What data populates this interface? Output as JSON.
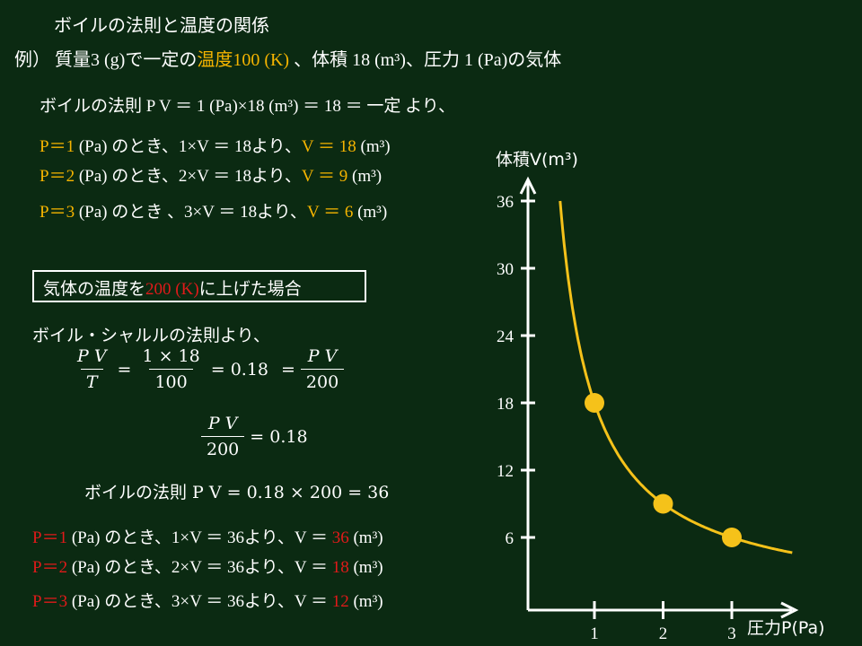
{
  "title": "ボイルの法則と温度の関係",
  "example": {
    "prefix": "例）",
    "mid": " 質量3 (g)で一定の",
    "temp_label": "温度",
    "temp_value": "100 (K)",
    "rest": " 、体積 18 (m³)、圧力 1 (Pa)の気体"
  },
  "boyle_line": "ボイルの法則 P V ＝ 1 (Pa)×18 (m³) ＝ 18 ＝ 一定 より、",
  "section1": [
    {
      "p": "P＝1",
      "mid": " (Pa) のとき、1×V ＝ 18より、",
      "v": "V ＝ 18",
      "unit": " (m³)"
    },
    {
      "p": "P＝2",
      "mid": " (Pa) のとき、2×V ＝ 18より、",
      "v": "V ＝ 9",
      "unit": " (m³)"
    },
    {
      "p": "P＝3",
      "mid": " (Pa) のとき 、3×V ＝ 18より、",
      "v": "V ＝ 6",
      "unit": " (m³)"
    }
  ],
  "box": {
    "pre": "気体の温度を",
    "value": "200 (K)",
    "post": "に上げた場合"
  },
  "charles_line": "ボイル・シャルルの法則より、",
  "eq1": {
    "n1": "P V",
    "d1": "T",
    "n2": "1 × 18",
    "d2": "100",
    "eq_a": "=",
    "mid": "= 0.18",
    "eq_b": "=",
    "n3": "P V",
    "d3": "200"
  },
  "eq2": {
    "n": "P V",
    "d": "200",
    "rhs": "= 0.18"
  },
  "boyle2": "ボイルの法則 P V = 0.18 × 200 = 36",
  "section2": [
    {
      "p": "P＝1",
      "mid": " (Pa) のとき、1×V ＝ 36より、V ＝ ",
      "v": "36",
      "unit": " (m³)"
    },
    {
      "p": "P＝2",
      "mid": " (Pa) のとき、2×V ＝ 36より、V ＝ ",
      "v": "18",
      "unit": " (m³)"
    },
    {
      "p": "P＝3",
      "mid": " (Pa) のとき、3×V ＝ 36より、V ＝ ",
      "v": "12",
      "unit": " (m³)"
    }
  ],
  "chart_data": {
    "type": "line",
    "ylabel": "体積V(m³)",
    "xlabel": "圧力P(Pa)",
    "yticks": [
      "36",
      "30",
      "24",
      "18",
      "12",
      "6"
    ],
    "xticks": [
      "1",
      "2",
      "3"
    ],
    "points": [
      {
        "x": 1,
        "y": 18
      },
      {
        "x": 2,
        "y": 9
      },
      {
        "x": 3,
        "y": 6
      }
    ],
    "curve": "V = 18 / P",
    "colors": {
      "curve": "#f5c21a",
      "point": "#f5c21a",
      "axis": "#ffffff"
    }
  }
}
